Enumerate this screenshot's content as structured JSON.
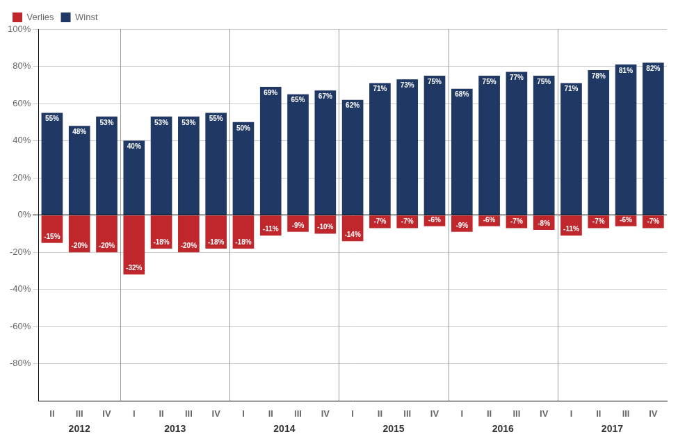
{
  "chart_data": {
    "type": "bar",
    "categories": [
      "II",
      "III",
      "IV",
      "I",
      "II",
      "III",
      "IV",
      "I",
      "II",
      "III",
      "IV",
      "I",
      "II",
      "III",
      "IV",
      "I",
      "II",
      "III",
      "IV",
      "I",
      "II",
      "III",
      "IV"
    ],
    "series": [
      {
        "name": "Verlies",
        "color": "#C0272D",
        "values": [
          -15,
          -20,
          -20,
          -32,
          -18,
          -20,
          -18,
          -18,
          -11,
          -9,
          -10,
          -14,
          -7,
          -7,
          -6,
          -9,
          -6,
          -7,
          -8,
          -11,
          -7,
          -6,
          -7
        ],
        "value_labels": [
          "-15%",
          "-20%",
          "-20%",
          "-32%",
          "-18%",
          "-20%",
          "-18%",
          "-18%",
          "-11%",
          "-9%",
          "-10%",
          "-14%",
          "-7%",
          "-7%",
          "-6%",
          "-9%",
          "-6%",
          "-7%",
          "-8%",
          "-11%",
          "-7%",
          "-6%",
          "-7%"
        ]
      },
      {
        "name": "Winst",
        "color": "#1F3864",
        "values": [
          55,
          48,
          53,
          40,
          53,
          53,
          55,
          50,
          69,
          65,
          67,
          62,
          71,
          73,
          75,
          68,
          75,
          77,
          75,
          71,
          78,
          81,
          82
        ],
        "value_labels": [
          "55%",
          "48%",
          "53%",
          "40%",
          "53%",
          "53%",
          "55%",
          "50%",
          "69%",
          "65%",
          "67%",
          "62%",
          "71%",
          "73%",
          "75%",
          "68%",
          "75%",
          "77%",
          "75%",
          "71%",
          "78%",
          "81%",
          "82%"
        ]
      }
    ],
    "annotations": [
      {
        "text": "2012",
        "x_from": 0,
        "x_to": 2
      },
      {
        "text": "2013",
        "x_from": 3,
        "x_to": 6
      },
      {
        "text": "2014",
        "x_from": 7,
        "x_to": 10
      },
      {
        "text": "2015",
        "x_from": 11,
        "x_to": 14
      },
      {
        "text": "2016",
        "x_from": 15,
        "x_to": 18
      },
      {
        "text": "2017",
        "x_from": 19,
        "x_to": 22
      }
    ],
    "ylim": [
      -100,
      100
    ],
    "yticks": [
      {
        "value": -80,
        "label": "-80%"
      },
      {
        "value": -60,
        "label": "-60%"
      },
      {
        "value": -40,
        "label": "-40%"
      },
      {
        "value": -20,
        "label": "-20%"
      },
      {
        "value": 0,
        "label": "0%"
      },
      {
        "value": 20,
        "label": "20%"
      },
      {
        "value": 40,
        "label": "40%"
      },
      {
        "value": 60,
        "label": "60%"
      },
      {
        "value": 80,
        "label": "80%"
      },
      {
        "value": 100,
        "label": "100%"
      }
    ],
    "grid": true,
    "legend": "upper left",
    "data_labels": true
  }
}
